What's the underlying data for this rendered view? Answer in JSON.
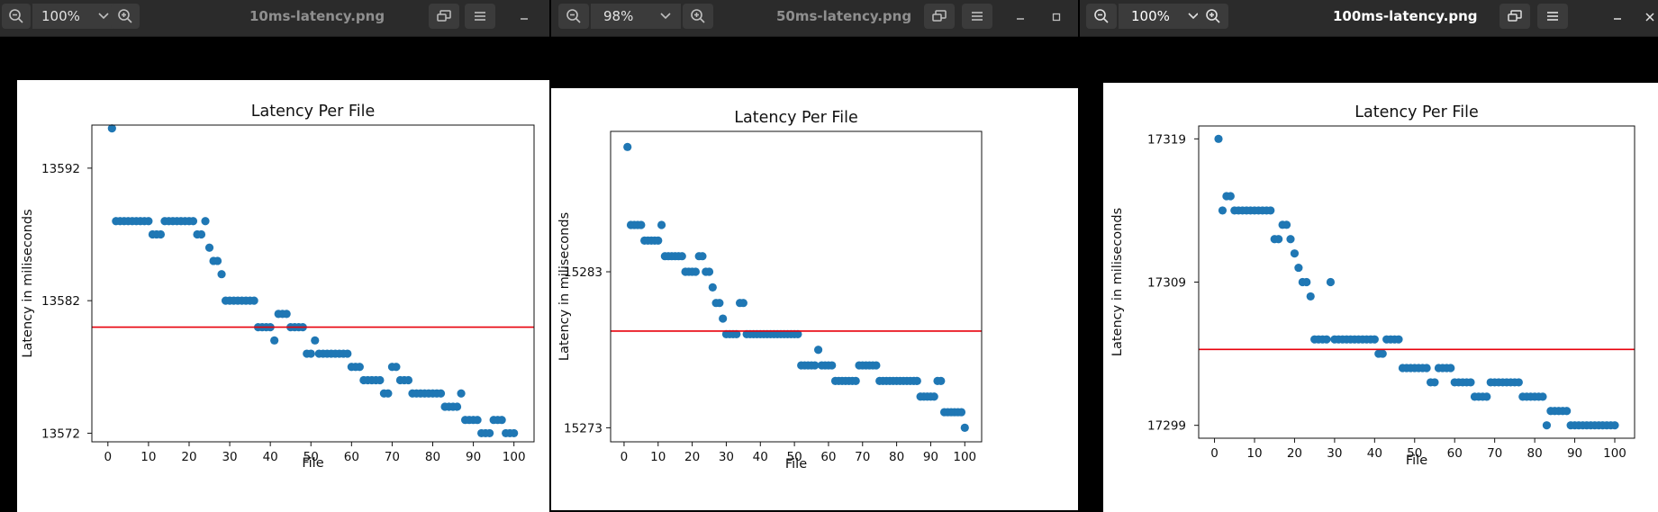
{
  "windows": [
    {
      "id": "w1",
      "zoom": "100%",
      "filename": "10ms-latency.png",
      "active": false,
      "chart_data": {
        "type": "scatter",
        "title": "Latency Per File",
        "xlabel": "File",
        "ylabel": "Latency in miliseconds",
        "x_ticks": [
          0,
          10,
          20,
          30,
          40,
          50,
          60,
          70,
          80,
          90,
          100
        ],
        "y_ticks": [
          13572,
          13582,
          13592
        ],
        "xlim": [
          -3.95,
          104.95
        ],
        "ylim": [
          13571.35,
          13595.25
        ],
        "reference_line_y": 13580,
        "point_color": "#1f77b4",
        "line_color": "#e8000b",
        "x": [
          1,
          2,
          3,
          4,
          5,
          6,
          7,
          8,
          9,
          10,
          11,
          12,
          13,
          14,
          15,
          16,
          17,
          18,
          19,
          20,
          21,
          22,
          23,
          24,
          25,
          26,
          27,
          28,
          29,
          30,
          31,
          32,
          33,
          34,
          35,
          36,
          37,
          38,
          39,
          40,
          41,
          42,
          43,
          44,
          45,
          46,
          47,
          48,
          49,
          50,
          51,
          52,
          53,
          54,
          55,
          56,
          57,
          58,
          59,
          60,
          61,
          62,
          63,
          64,
          65,
          66,
          67,
          68,
          69,
          70,
          71,
          72,
          73,
          74,
          75,
          76,
          77,
          78,
          79,
          80,
          81,
          82,
          83,
          84,
          85,
          86,
          87,
          88,
          89,
          90,
          91,
          92,
          93,
          94,
          95,
          96,
          97,
          98,
          99,
          100
        ],
        "y": [
          13595,
          13588,
          13588,
          13588,
          13588,
          13588,
          13588,
          13588,
          13588,
          13588,
          13587,
          13587,
          13587,
          13588,
          13588,
          13588,
          13588,
          13588,
          13588,
          13588,
          13588,
          13587,
          13587,
          13588,
          13586,
          13585,
          13585,
          13584,
          13582,
          13582,
          13582,
          13582,
          13582,
          13582,
          13582,
          13582,
          13580,
          13580,
          13580,
          13580,
          13579,
          13581,
          13581,
          13581,
          13580,
          13580,
          13580,
          13580,
          13578,
          13578,
          13579,
          13578,
          13578,
          13578,
          13578,
          13578,
          13578,
          13578,
          13578,
          13577,
          13577,
          13577,
          13576,
          13576,
          13576,
          13576,
          13576,
          13575,
          13575,
          13577,
          13577,
          13576,
          13576,
          13576,
          13575,
          13575,
          13575,
          13575,
          13575,
          13575,
          13575,
          13575,
          13574,
          13574,
          13574,
          13574,
          13575,
          13573,
          13573,
          13573,
          13573,
          13572,
          13572,
          13572,
          13573,
          13573,
          13573,
          13572,
          13572,
          13572
        ]
      }
    },
    {
      "id": "w2",
      "zoom": "98%",
      "filename": "50ms-latency.png",
      "active": false,
      "chart_data": {
        "type": "scatter",
        "title": "Latency Per File",
        "xlabel": "File",
        "ylabel": "Latency in miliseconds",
        "x_ticks": [
          0,
          10,
          20,
          30,
          40,
          50,
          60,
          70,
          80,
          90,
          100
        ],
        "y_ticks": [
          15273,
          15283
        ],
        "xlim": [
          -3.95,
          104.95
        ],
        "ylim": [
          15272.1,
          15292.0
        ],
        "reference_line_y": 15279.2,
        "point_color": "#1f77b4",
        "line_color": "#e8000b",
        "x": [
          1,
          2,
          3,
          4,
          5,
          6,
          7,
          8,
          9,
          10,
          11,
          12,
          13,
          14,
          15,
          16,
          17,
          18,
          19,
          20,
          21,
          22,
          23,
          24,
          25,
          26,
          27,
          28,
          29,
          30,
          31,
          32,
          33,
          34,
          35,
          36,
          37,
          38,
          39,
          40,
          41,
          42,
          43,
          44,
          45,
          46,
          47,
          48,
          49,
          50,
          51,
          52,
          53,
          54,
          55,
          56,
          57,
          58,
          59,
          60,
          61,
          62,
          63,
          64,
          65,
          66,
          67,
          68,
          69,
          70,
          71,
          72,
          73,
          74,
          75,
          76,
          77,
          78,
          79,
          80,
          81,
          82,
          83,
          84,
          85,
          86,
          87,
          88,
          89,
          90,
          91,
          92,
          93,
          94,
          95,
          96,
          97,
          98,
          99,
          100
        ],
        "y": [
          15291,
          15286,
          15286,
          15286,
          15286,
          15285,
          15285,
          15285,
          15285,
          15285,
          15286,
          15284,
          15284,
          15284,
          15284,
          15284,
          15284,
          15283,
          15283,
          15283,
          15283,
          15284,
          15284,
          15283,
          15283,
          15282,
          15281,
          15281,
          15280,
          15279,
          15279,
          15279,
          15279,
          15281,
          15281,
          15279,
          15279,
          15279,
          15279,
          15279,
          15279,
          15279,
          15279,
          15279,
          15279,
          15279,
          15279,
          15279,
          15279,
          15279,
          15279,
          15277,
          15277,
          15277,
          15277,
          15277,
          15278,
          15277,
          15277,
          15277,
          15277,
          15276,
          15276,
          15276,
          15276,
          15276,
          15276,
          15276,
          15277,
          15277,
          15277,
          15277,
          15277,
          15277,
          15276,
          15276,
          15276,
          15276,
          15276,
          15276,
          15276,
          15276,
          15276,
          15276,
          15276,
          15276,
          15275,
          15275,
          15275,
          15275,
          15275,
          15276,
          15276,
          15274,
          15274,
          15274,
          15274,
          15274,
          15274,
          15273
        ]
      }
    },
    {
      "id": "w3",
      "zoom": "100%",
      "filename": "100ms-latency.png",
      "active": true,
      "chart_data": {
        "type": "scatter",
        "title": "Latency Per File",
        "xlabel": "File",
        "ylabel": "Latency in miliseconds",
        "x_ticks": [
          0,
          10,
          20,
          30,
          40,
          50,
          60,
          70,
          80,
          90,
          100
        ],
        "y_ticks": [
          17299,
          17309,
          17319
        ],
        "xlim": [
          -3.95,
          104.95
        ],
        "ylim": [
          17298.1,
          17319.9
        ],
        "reference_line_y": 17304.3,
        "point_color": "#1f77b4",
        "line_color": "#e8000b",
        "x": [
          1,
          2,
          3,
          4,
          5,
          6,
          7,
          8,
          9,
          10,
          11,
          12,
          13,
          14,
          15,
          16,
          17,
          18,
          19,
          20,
          21,
          22,
          23,
          24,
          25,
          26,
          27,
          28,
          29,
          30,
          31,
          32,
          33,
          34,
          35,
          36,
          37,
          38,
          39,
          40,
          41,
          42,
          43,
          44,
          45,
          46,
          47,
          48,
          49,
          50,
          51,
          52,
          53,
          54,
          55,
          56,
          57,
          58,
          59,
          60,
          61,
          62,
          63,
          64,
          65,
          66,
          67,
          68,
          69,
          70,
          71,
          72,
          73,
          74,
          75,
          76,
          77,
          78,
          79,
          80,
          81,
          82,
          83,
          84,
          85,
          86,
          87,
          88,
          89,
          90,
          91,
          92,
          93,
          94,
          95,
          96,
          97,
          98,
          99,
          100
        ],
        "y": [
          17319,
          17314,
          17315,
          17315,
          17314,
          17314,
          17314,
          17314,
          17314,
          17314,
          17314,
          17314,
          17314,
          17314,
          17312,
          17312,
          17313,
          17313,
          17312,
          17311,
          17310,
          17309,
          17309,
          17308,
          17305,
          17305,
          17305,
          17305,
          17309,
          17305,
          17305,
          17305,
          17305,
          17305,
          17305,
          17305,
          17305,
          17305,
          17305,
          17305,
          17304,
          17304,
          17305,
          17305,
          17305,
          17305,
          17303,
          17303,
          17303,
          17303,
          17303,
          17303,
          17303,
          17302,
          17302,
          17303,
          17303,
          17303,
          17303,
          17302,
          17302,
          17302,
          17302,
          17302,
          17301,
          17301,
          17301,
          17301,
          17302,
          17302,
          17302,
          17302,
          17302,
          17302,
          17302,
          17302,
          17301,
          17301,
          17301,
          17301,
          17301,
          17301,
          17299,
          17300,
          17300,
          17300,
          17300,
          17300,
          17299,
          17299,
          17299,
          17299,
          17299,
          17299,
          17299,
          17299,
          17299,
          17299,
          17299,
          17299
        ]
      }
    }
  ]
}
